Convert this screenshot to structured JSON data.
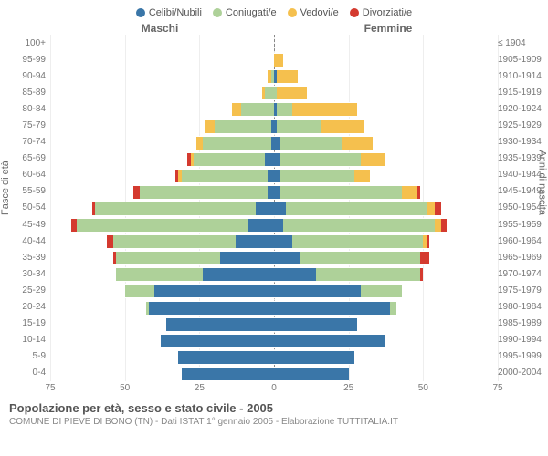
{
  "chart": {
    "type": "population-pyramid",
    "xlim": 75,
    "xticks": [
      75,
      50,
      25,
      0,
      25,
      50,
      75
    ],
    "background_color": "#ffffff",
    "grid_color": "#eeeeee",
    "sides": {
      "left": "Maschi",
      "right": "Femmine"
    },
    "ylabel_left": "Fasce di età",
    "ylabel_right": "Anni di nascita",
    "legend": [
      {
        "label": "Celibi/Nubili",
        "color": "#3a76a8"
      },
      {
        "label": "Coniugati/e",
        "color": "#aed199"
      },
      {
        "label": "Vedovi/e",
        "color": "#f5c04e"
      },
      {
        "label": "Divorziati/e",
        "color": "#d43a2f"
      }
    ],
    "rows": [
      {
        "age": "100+",
        "birth": "≤ 1904",
        "m": [
          0,
          0,
          0,
          0
        ],
        "f": [
          0,
          0,
          0,
          0
        ]
      },
      {
        "age": "95-99",
        "birth": "1905-1909",
        "m": [
          0,
          0,
          0,
          0
        ],
        "f": [
          0,
          0,
          3,
          0
        ]
      },
      {
        "age": "90-94",
        "birth": "1910-1914",
        "m": [
          0,
          1,
          1,
          0
        ],
        "f": [
          1,
          0,
          7,
          0
        ]
      },
      {
        "age": "85-89",
        "birth": "1915-1919",
        "m": [
          0,
          3,
          1,
          0
        ],
        "f": [
          0,
          1,
          10,
          0
        ]
      },
      {
        "age": "80-84",
        "birth": "1920-1924",
        "m": [
          0,
          11,
          3,
          0
        ],
        "f": [
          1,
          5,
          22,
          0
        ]
      },
      {
        "age": "75-79",
        "birth": "1925-1929",
        "m": [
          1,
          19,
          3,
          0
        ],
        "f": [
          1,
          15,
          14,
          0
        ]
      },
      {
        "age": "70-74",
        "birth": "1930-1934",
        "m": [
          1,
          23,
          2,
          0
        ],
        "f": [
          2,
          21,
          10,
          0
        ]
      },
      {
        "age": "65-69",
        "birth": "1935-1939",
        "m": [
          3,
          24,
          1,
          1
        ],
        "f": [
          2,
          27,
          8,
          0
        ]
      },
      {
        "age": "60-64",
        "birth": "1940-1944",
        "m": [
          2,
          29,
          1,
          1
        ],
        "f": [
          2,
          25,
          5,
          0
        ]
      },
      {
        "age": "55-59",
        "birth": "1945-1949",
        "m": [
          2,
          43,
          0,
          2
        ],
        "f": [
          2,
          41,
          5,
          1
        ]
      },
      {
        "age": "50-54",
        "birth": "1950-1954",
        "m": [
          6,
          54,
          0,
          1
        ],
        "f": [
          4,
          47,
          3,
          2
        ]
      },
      {
        "age": "45-49",
        "birth": "1955-1959",
        "m": [
          9,
          57,
          0,
          2
        ],
        "f": [
          3,
          51,
          2,
          2
        ]
      },
      {
        "age": "40-44",
        "birth": "1960-1964",
        "m": [
          13,
          41,
          0,
          2
        ],
        "f": [
          6,
          44,
          1,
          1
        ]
      },
      {
        "age": "35-39",
        "birth": "1965-1969",
        "m": [
          18,
          35,
          0,
          1
        ],
        "f": [
          9,
          40,
          0,
          3
        ]
      },
      {
        "age": "30-34",
        "birth": "1970-1974",
        "m": [
          24,
          29,
          0,
          0
        ],
        "f": [
          14,
          35,
          0,
          1
        ]
      },
      {
        "age": "25-29",
        "birth": "1975-1979",
        "m": [
          40,
          10,
          0,
          0
        ],
        "f": [
          29,
          14,
          0,
          0
        ]
      },
      {
        "age": "20-24",
        "birth": "1980-1984",
        "m": [
          42,
          1,
          0,
          0
        ],
        "f": [
          39,
          2,
          0,
          0
        ]
      },
      {
        "age": "15-19",
        "birth": "1985-1989",
        "m": [
          36,
          0,
          0,
          0
        ],
        "f": [
          28,
          0,
          0,
          0
        ]
      },
      {
        "age": "10-14",
        "birth": "1990-1994",
        "m": [
          38,
          0,
          0,
          0
        ],
        "f": [
          37,
          0,
          0,
          0
        ]
      },
      {
        "age": "5-9",
        "birth": "1995-1999",
        "m": [
          32,
          0,
          0,
          0
        ],
        "f": [
          27,
          0,
          0,
          0
        ]
      },
      {
        "age": "0-4",
        "birth": "2000-2004",
        "m": [
          31,
          0,
          0,
          0
        ],
        "f": [
          25,
          0,
          0,
          0
        ]
      }
    ]
  },
  "caption": {
    "line1": "Popolazione per età, sesso e stato civile - 2005",
    "line2": "COMUNE DI PIEVE DI BONO (TN) - Dati ISTAT 1° gennaio 2005 - Elaborazione TUTTITALIA.IT"
  }
}
